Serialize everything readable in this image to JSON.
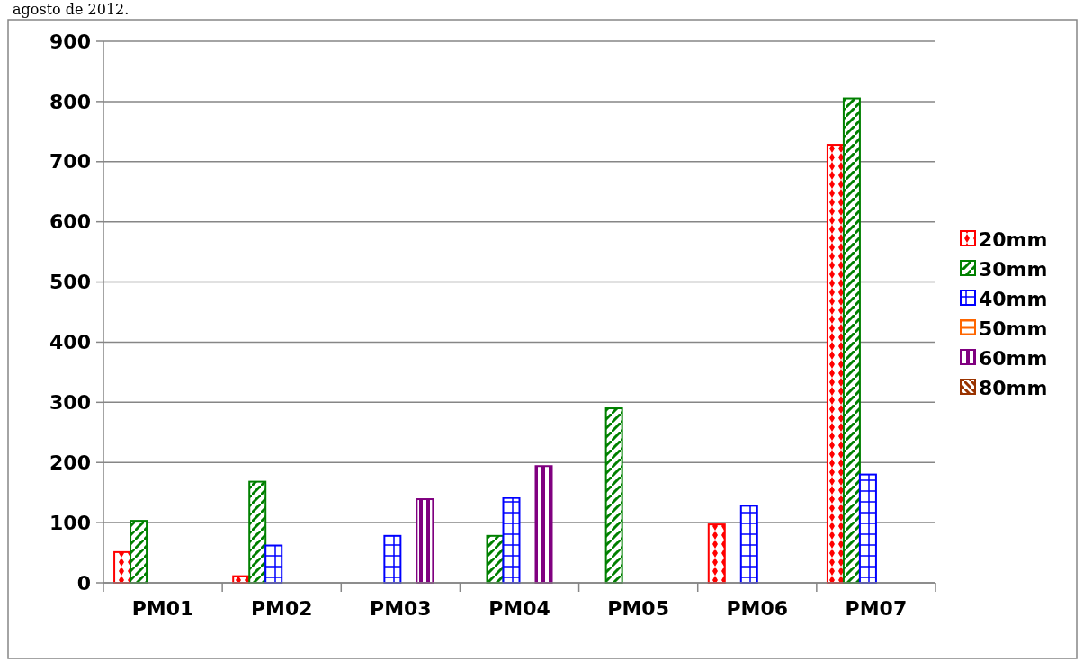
{
  "chart_data": {
    "type": "bar",
    "annotations": [
      "agosto de 2012."
    ],
    "categories": [
      "PM01",
      "PM02",
      "PM03",
      "PM04",
      "PM05",
      "PM06",
      "PM07"
    ],
    "series": [
      {
        "name": "20mm",
        "color": "#ff0000",
        "values": [
          51,
          11,
          null,
          null,
          null,
          97,
          728
        ]
      },
      {
        "name": "30mm",
        "color": "#008000",
        "values": [
          103,
          168,
          null,
          78,
          290,
          null,
          805
        ]
      },
      {
        "name": "40mm",
        "color": "#0000ff",
        "values": [
          null,
          62,
          78,
          141,
          null,
          128,
          180
        ]
      },
      {
        "name": "50mm",
        "color": "#ff6600",
        "values": [
          null,
          null,
          null,
          null,
          null,
          null,
          null
        ]
      },
      {
        "name": "60mm",
        "color": "#800080",
        "values": [
          null,
          null,
          139,
          194,
          null,
          null,
          null
        ]
      },
      {
        "name": "80mm",
        "color": "#993300",
        "values": [
          null,
          null,
          null,
          null,
          null,
          null,
          null
        ]
      }
    ],
    "ylim": [
      0,
      900
    ],
    "yticks": [
      0,
      100,
      200,
      300,
      400,
      500,
      600,
      700,
      800,
      900
    ],
    "grid": "y",
    "legend": "right"
  }
}
